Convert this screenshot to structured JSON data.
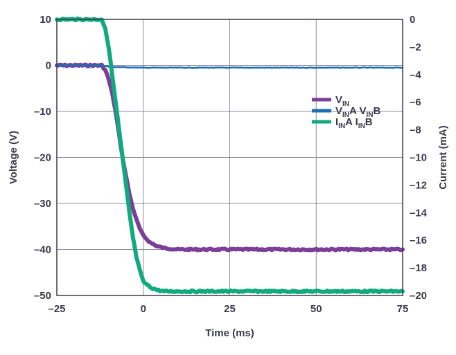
{
  "chart_data": {
    "type": "line",
    "title": "",
    "xlabel": "Time (ms)",
    "ylabel": "Voltage (V)",
    "y2label": "Current (mA)",
    "xlim": [
      -25,
      75
    ],
    "ylim": [
      -50,
      10
    ],
    "y2lim": [
      -20,
      0
    ],
    "x_ticks": [
      "–25",
      "0",
      "25",
      "50",
      "75"
    ],
    "x_tick_values": [
      -25,
      0,
      25,
      50,
      75
    ],
    "y_ticks": [
      "10",
      "0",
      "–10",
      "–20",
      "–30",
      "–40",
      "–50"
    ],
    "y_tick_values": [
      10,
      0,
      -10,
      -20,
      -30,
      -40,
      -50
    ],
    "y2_ticks": [
      "0",
      "–2",
      "–4",
      "–6",
      "–8",
      "–10",
      "–12",
      "–14",
      "–16",
      "–18",
      "–20"
    ],
    "y2_tick_values": [
      0,
      -2,
      -4,
      -6,
      -8,
      -10,
      -12,
      -14,
      -16,
      -18,
      -20
    ],
    "grid": true,
    "legend_position": "right",
    "series": [
      {
        "name": "VIN",
        "legend_main": "V",
        "legend_sub": "IN",
        "legend_parts": [
          {
            "t": "V"
          },
          {
            "t": "IN",
            "sub": true
          }
        ],
        "color": "#7B3F98",
        "axis": "left",
        "x": [
          -25,
          -15,
          -12,
          -11,
          -10,
          -9,
          -8,
          -7,
          -6,
          -5,
          -4,
          -3,
          -2,
          -1,
          0,
          2,
          4,
          6,
          10,
          20,
          30,
          40,
          50,
          60,
          75
        ],
        "values": [
          0,
          0,
          0,
          -1,
          -3,
          -6,
          -10,
          -15,
          -20,
          -24,
          -28,
          -31,
          -33.5,
          -35.5,
          -37,
          -38.5,
          -39.3,
          -39.7,
          -40,
          -40,
          -40,
          -40,
          -40,
          -40,
          -40
        ]
      },
      {
        "name": "VINA VINB",
        "legend_parts": [
          {
            "t": "V"
          },
          {
            "t": "IN",
            "sub": true
          },
          {
            "t": "A V"
          },
          {
            "t": "IN",
            "sub": true
          },
          {
            "t": "B"
          }
        ],
        "color": "#1E6DB5",
        "axis": "left",
        "x": [
          -25,
          -12,
          -10,
          -5,
          0,
          25,
          50,
          75
        ],
        "values": [
          0,
          0,
          -0.3,
          -0.4,
          -0.5,
          -0.5,
          -0.5,
          -0.5
        ]
      },
      {
        "name": "IINA IINB",
        "legend_parts": [
          {
            "t": "I"
          },
          {
            "t": "IN",
            "sub": true
          },
          {
            "t": "A I"
          },
          {
            "t": "IN",
            "sub": true
          },
          {
            "t": "B"
          }
        ],
        "color": "#12A97E",
        "axis": "right",
        "x": [
          -25,
          -15,
          -12,
          -11,
          -10,
          -9,
          -8,
          -7,
          -6,
          -5,
          -4,
          -3,
          -2,
          -1,
          0,
          2,
          4,
          6,
          10,
          20,
          30,
          40,
          50,
          60,
          75
        ],
        "values": [
          0,
          0,
          0,
          -0.7,
          -2,
          -4,
          -6,
          -8,
          -10,
          -12,
          -14,
          -15.8,
          -17.2,
          -18.2,
          -19,
          -19.4,
          -19.6,
          -19.7,
          -19.7,
          -19.7,
          -19.7,
          -19.7,
          -19.7,
          -19.7,
          -19.7
        ]
      }
    ]
  }
}
